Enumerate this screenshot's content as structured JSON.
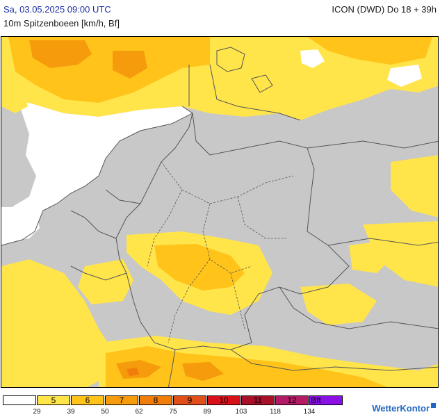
{
  "header": {
    "title_left": "Sa, 03.05.2025 09:00 UTC",
    "title_right": "ICON (DWD) Do 18 + 39h",
    "subtitle": "10m Spitzenboeen [km/h, Bf]"
  },
  "colors": {
    "sea_calm": "#ffffff",
    "land_below_threshold": "#c8c8c8",
    "bft5": "#ffe44a",
    "bft6": "#ffc31a",
    "bft7": "#f59b0c",
    "bft8": "#f07d0a",
    "bft9": "#e24e1a",
    "bft10": "#d8101a",
    "bft11": "#a8102a",
    "bft12": "#b41a66",
    "bft_extreme": "#8a10e6",
    "border_line": "#555555"
  },
  "legend": {
    "bft_labels": [
      "",
      "5",
      "6",
      "7",
      "8",
      "9",
      "10",
      "11",
      "12",
      "Bft"
    ],
    "kmh_labels": [
      "29",
      "39",
      "50",
      "62",
      "75",
      "89",
      "103",
      "118",
      "134"
    ]
  },
  "logo": {
    "text": "WetterKontor",
    "icon": "wetterkontor-logo-icon"
  }
}
